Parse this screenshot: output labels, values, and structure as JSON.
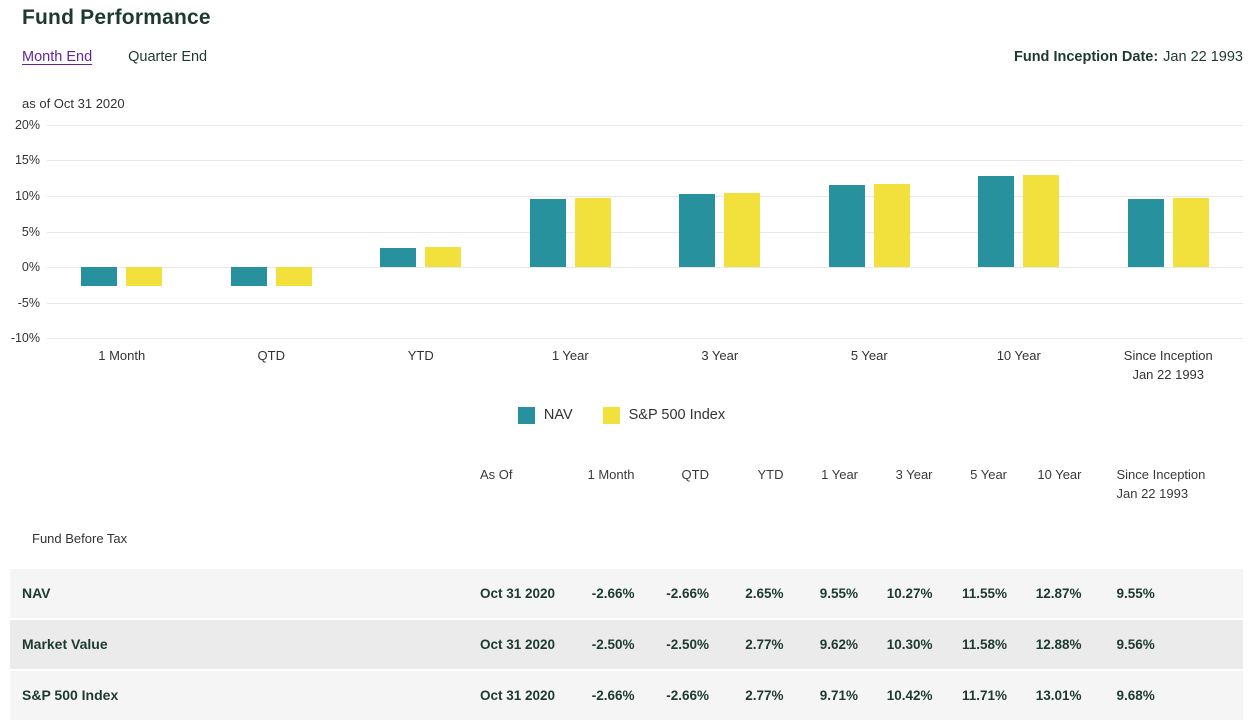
{
  "page": {
    "title": "Fund Performance",
    "tabs": [
      {
        "label": "Month End",
        "active": true
      },
      {
        "label": "Quarter End",
        "active": false
      }
    ],
    "inception_label": "Fund Inception Date:",
    "inception_value": "Jan 22 1993",
    "as_of": "as of Oct 31 2020"
  },
  "colors": {
    "nav_teal": "#28919E",
    "index_yellow": "#F2E13D",
    "link_purple": "#5F259F",
    "dark_text": "#1E3932",
    "gridline": "#E8E8E8",
    "row_light": "#F5F5F5",
    "row_dark": "#EBEBEB"
  },
  "chart_data": {
    "type": "bar",
    "title": "Fund Performance as of Oct 31 2020",
    "categories": [
      "1 Month",
      "QTD",
      "YTD",
      "1 Year",
      "3 Year",
      "5 Year",
      "10 Year",
      "Since Inception\nJan 22 1993"
    ],
    "series": [
      {
        "name": "NAV",
        "color": "#28919E",
        "values": [
          -2.66,
          -2.66,
          2.65,
          9.55,
          10.27,
          11.55,
          12.87,
          9.55
        ]
      },
      {
        "name": "S&P 500 Index",
        "color": "#F2E13D",
        "values": [
          -2.66,
          -2.66,
          2.77,
          9.71,
          10.42,
          11.71,
          13.01,
          9.68
        ]
      }
    ],
    "xlabel": "",
    "ylabel": "",
    "ylim": [
      -10,
      20
    ],
    "ytick_step": 5,
    "ytick_suffix": "%",
    "grid": "horizontal",
    "legend_position": "bottom"
  },
  "table": {
    "section_label": "Fund Before Tax",
    "columns": [
      "As Of",
      "1 Month",
      "QTD",
      "YTD",
      "1 Year",
      "3 Year",
      "5 Year",
      "10 Year",
      "Since Inception\nJan 22 1993"
    ],
    "rows": [
      {
        "label": "NAV",
        "as_of": "Oct 31 2020",
        "values": [
          "-2.66%",
          "-2.66%",
          "2.65%",
          "9.55%",
          "10.27%",
          "11.55%",
          "12.87%",
          "9.55%"
        ]
      },
      {
        "label": "Market Value",
        "as_of": "Oct 31 2020",
        "values": [
          "-2.50%",
          "-2.50%",
          "2.77%",
          "9.62%",
          "10.30%",
          "11.58%",
          "12.88%",
          "9.56%"
        ]
      },
      {
        "label": "S&P 500 Index",
        "as_of": "Oct 31 2020",
        "values": [
          "-2.66%",
          "-2.66%",
          "2.77%",
          "9.71%",
          "10.42%",
          "11.71%",
          "13.01%",
          "9.68%"
        ]
      }
    ]
  }
}
